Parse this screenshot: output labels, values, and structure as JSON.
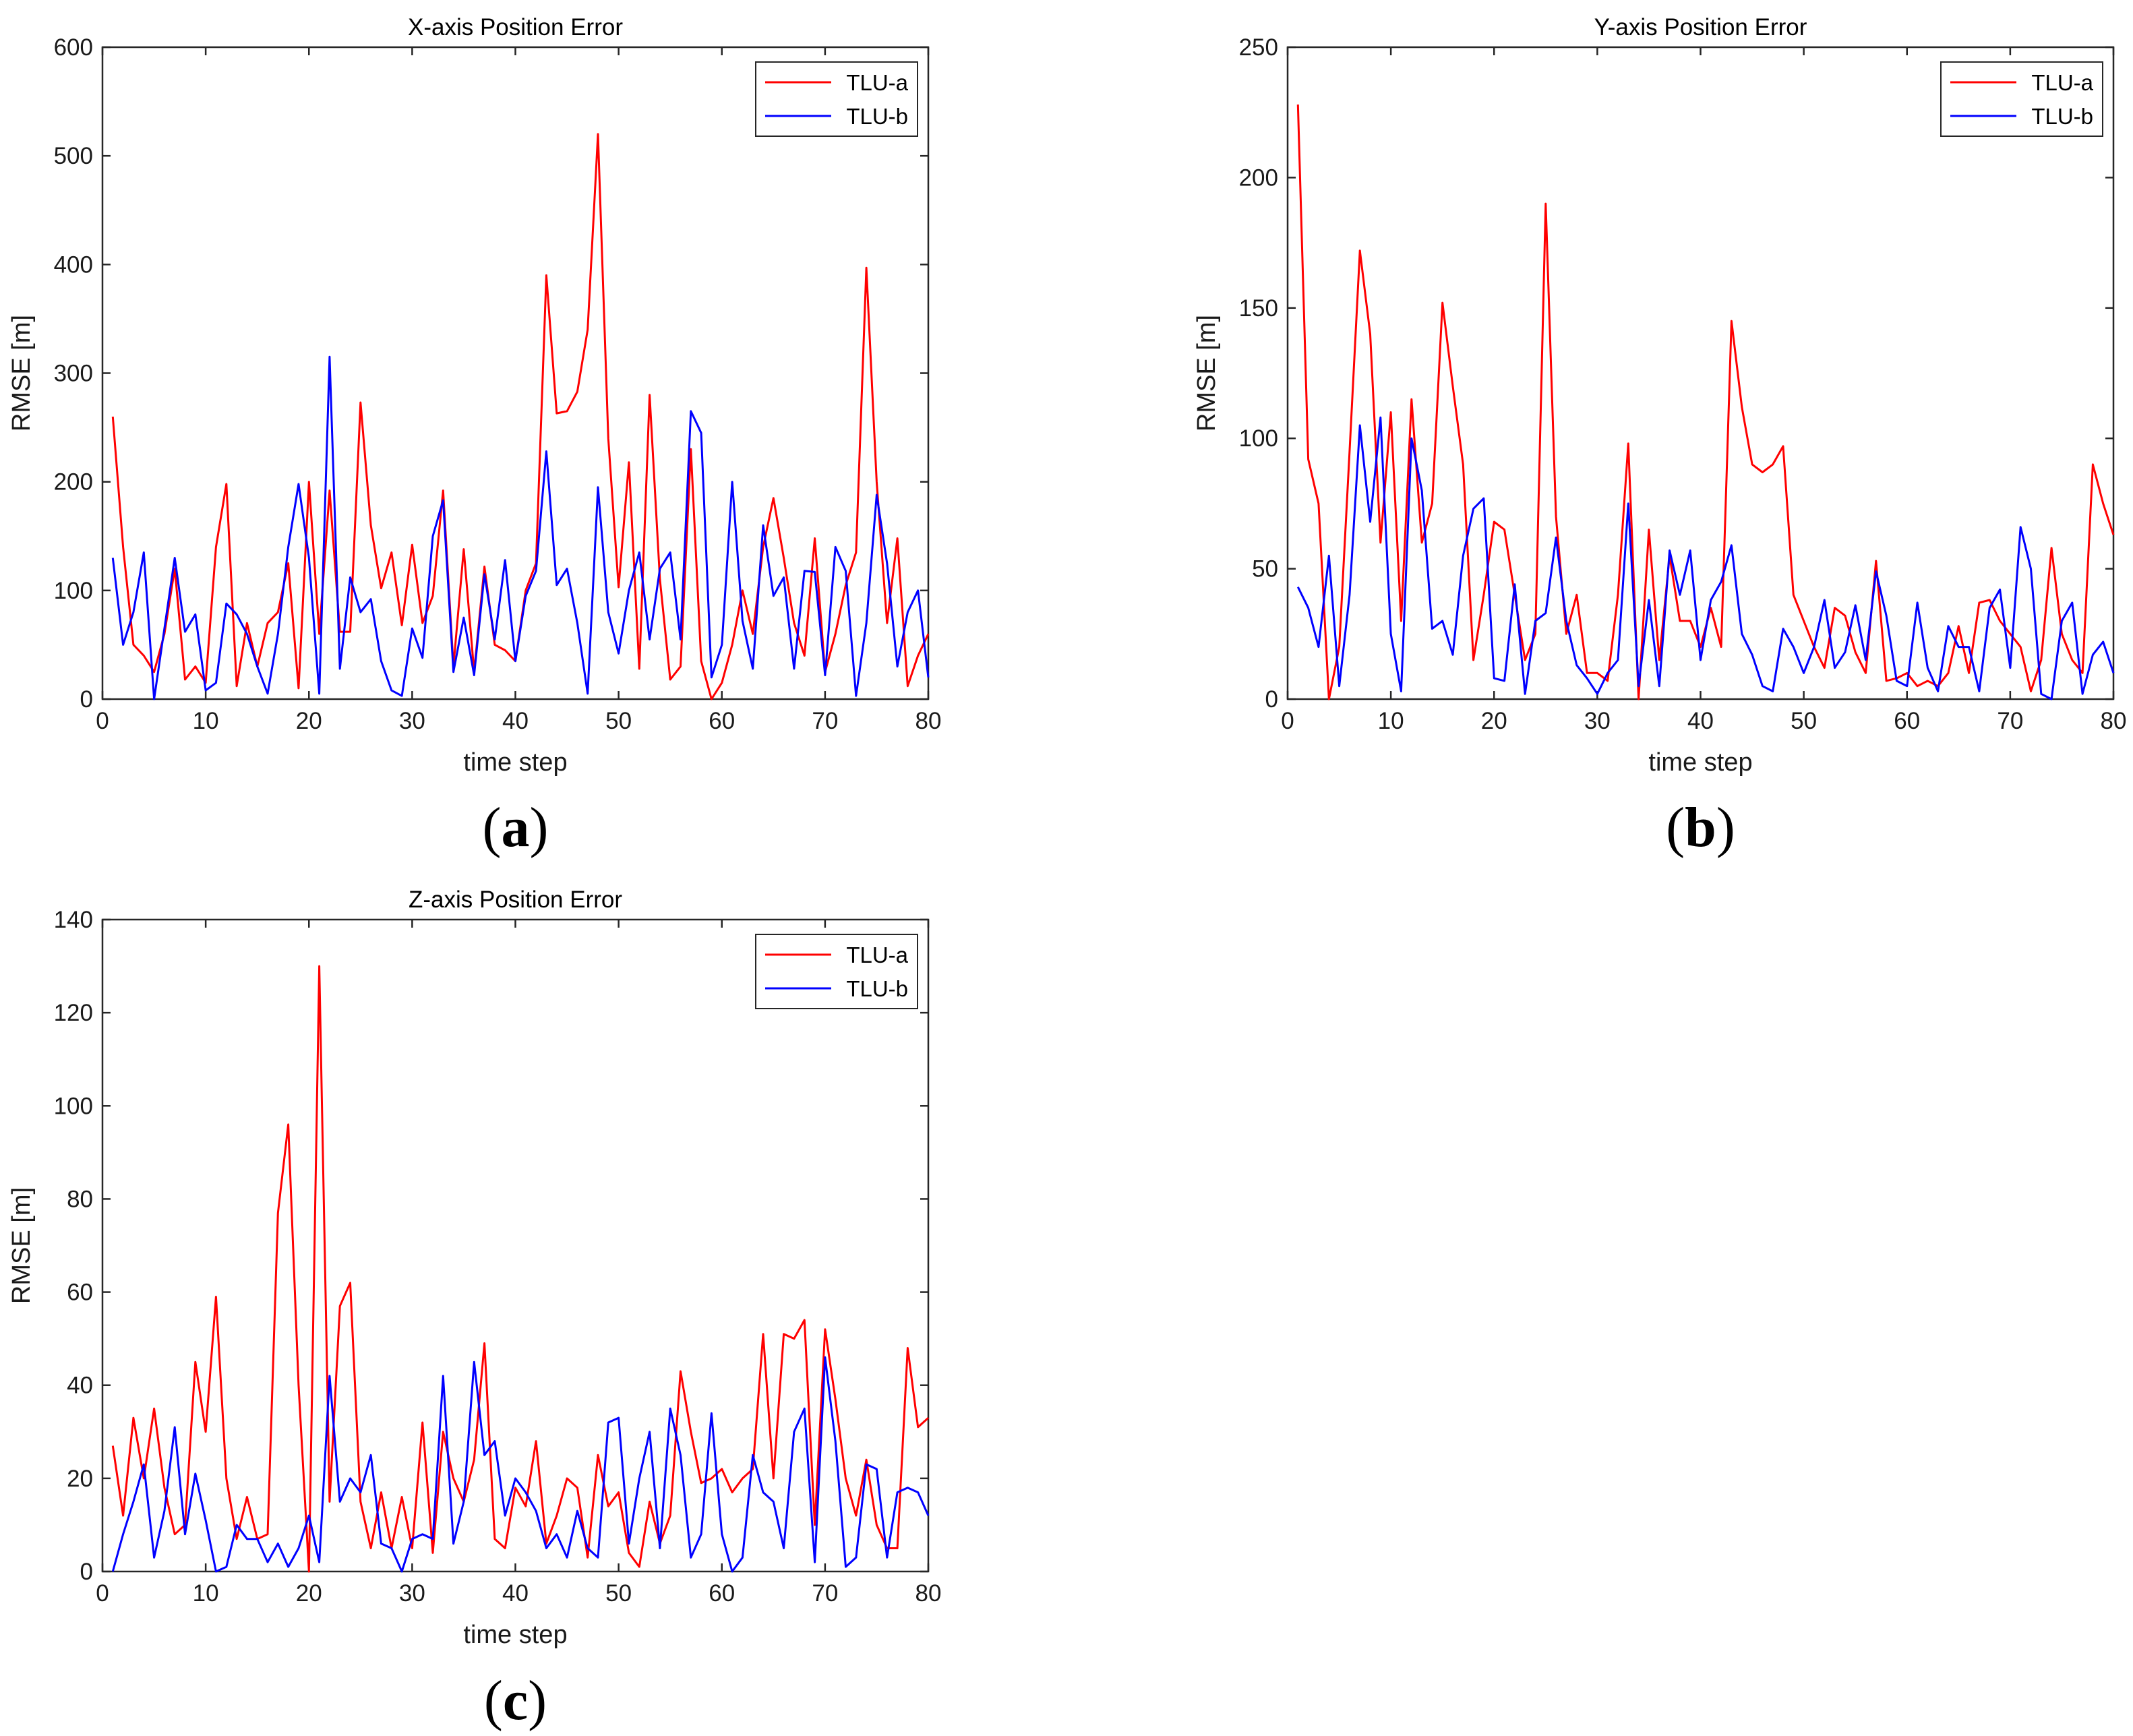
{
  "chart_data": [
    {
      "type": "line",
      "title": "X-axis Position Error",
      "xlabel": "time step",
      "ylabel": "RMSE [m]",
      "xlim": [
        0,
        80
      ],
      "ylim": [
        0,
        600
      ],
      "xticks": [
        0,
        10,
        20,
        30,
        40,
        50,
        60,
        70,
        80
      ],
      "yticks": [
        0,
        100,
        200,
        300,
        400,
        500,
        600
      ],
      "legend_position": "top-right",
      "caption_letter": "a",
      "series": [
        {
          "name": "TLU-a",
          "color": "#ff0000",
          "x": [
            1,
            2,
            3,
            4,
            5,
            6,
            7,
            8,
            9,
            10,
            11,
            12,
            13,
            14,
            15,
            16,
            17,
            18,
            19,
            20,
            21,
            22,
            23,
            24,
            25,
            26,
            27,
            28,
            29,
            30,
            31,
            32,
            33,
            34,
            35,
            36,
            37,
            38,
            39,
            40,
            41,
            42,
            43,
            44,
            45,
            46,
            47,
            48,
            49,
            50,
            51,
            52,
            53,
            54,
            55,
            56,
            57,
            58,
            59,
            60,
            61,
            62,
            63,
            64,
            65,
            66,
            67,
            68,
            69,
            70,
            71,
            72,
            73,
            74,
            75,
            76,
            77,
            78,
            79,
            80
          ],
          "values": [
            260,
            140,
            50,
            40,
            25,
            60,
            120,
            18,
            30,
            15,
            140,
            198,
            12,
            70,
            30,
            70,
            80,
            125,
            10,
            200,
            60,
            192,
            62,
            62,
            273,
            160,
            102,
            135,
            68,
            142,
            70,
            95,
            192,
            30,
            138,
            25,
            122,
            50,
            45,
            35,
            100,
            125,
            390,
            263,
            265,
            283,
            340,
            520,
            240,
            103,
            218,
            28,
            280,
            110,
            18,
            30,
            230,
            35,
            0,
            15,
            50,
            100,
            60,
            140,
            185,
            130,
            70,
            40,
            148,
            25,
            60,
            105,
            135,
            397,
            200,
            70,
            148,
            12,
            40,
            60
          ]
        },
        {
          "name": "TLU-b",
          "color": "#0000ff",
          "x": [
            1,
            2,
            3,
            4,
            5,
            6,
            7,
            8,
            9,
            10,
            11,
            12,
            13,
            14,
            15,
            16,
            17,
            18,
            19,
            20,
            21,
            22,
            23,
            24,
            25,
            26,
            27,
            28,
            29,
            30,
            31,
            32,
            33,
            34,
            35,
            36,
            37,
            38,
            39,
            40,
            41,
            42,
            43,
            44,
            45,
            46,
            47,
            48,
            49,
            50,
            51,
            52,
            53,
            54,
            55,
            56,
            57,
            58,
            59,
            60,
            61,
            62,
            63,
            64,
            65,
            66,
            67,
            68,
            69,
            70,
            71,
            72,
            73,
            74,
            75,
            76,
            77,
            78,
            79,
            80
          ],
          "values": [
            130,
            50,
            80,
            135,
            0,
            65,
            130,
            62,
            78,
            8,
            15,
            88,
            78,
            60,
            30,
            5,
            60,
            140,
            198,
            130,
            5,
            315,
            28,
            112,
            80,
            92,
            35,
            8,
            3,
            65,
            38,
            150,
            183,
            25,
            75,
            22,
            115,
            55,
            128,
            35,
            95,
            118,
            228,
            105,
            120,
            70,
            5,
            195,
            80,
            42,
            100,
            135,
            55,
            120,
            135,
            55,
            265,
            245,
            20,
            50,
            200,
            72,
            28,
            160,
            95,
            112,
            28,
            118,
            117,
            22,
            140,
            118,
            3,
            70,
            188,
            125,
            30,
            80,
            100,
            20
          ]
        }
      ]
    },
    {
      "type": "line",
      "title": "Y-axis Position Error",
      "xlabel": "time step",
      "ylabel": "RMSE [m]",
      "xlim": [
        0,
        80
      ],
      "ylim": [
        0,
        250
      ],
      "xticks": [
        0,
        10,
        20,
        30,
        40,
        50,
        60,
        70,
        80
      ],
      "yticks": [
        0,
        50,
        100,
        150,
        200,
        250
      ],
      "legend_position": "top-right",
      "caption_letter": "b",
      "series": [
        {
          "name": "TLU-a",
          "color": "#ff0000",
          "x": [
            1,
            2,
            3,
            4,
            5,
            6,
            7,
            8,
            9,
            10,
            11,
            12,
            13,
            14,
            15,
            16,
            17,
            18,
            19,
            20,
            21,
            22,
            23,
            24,
            25,
            26,
            27,
            28,
            29,
            30,
            31,
            32,
            33,
            34,
            35,
            36,
            37,
            38,
            39,
            40,
            41,
            42,
            43,
            44,
            45,
            46,
            47,
            48,
            49,
            50,
            51,
            52,
            53,
            54,
            55,
            56,
            57,
            58,
            59,
            60,
            61,
            62,
            63,
            64,
            65,
            66,
            67,
            68,
            69,
            70,
            71,
            72,
            73,
            74,
            75,
            76,
            77,
            78,
            79,
            80
          ],
          "values": [
            228,
            92,
            75,
            0,
            20,
            95,
            172,
            140,
            60,
            110,
            30,
            115,
            60,
            75,
            152,
            120,
            90,
            15,
            40,
            68,
            65,
            40,
            15,
            25,
            190,
            70,
            25,
            40,
            10,
            10,
            7,
            40,
            98,
            0,
            65,
            15,
            55,
            30,
            30,
            20,
            35,
            20,
            145,
            112,
            90,
            87,
            90,
            97,
            40,
            30,
            20,
            12,
            35,
            32,
            18,
            10,
            53,
            7,
            8,
            10,
            5,
            7,
            5,
            10,
            28,
            10,
            37,
            38,
            30,
            25,
            20,
            3,
            15,
            58,
            25,
            15,
            10,
            90,
            75,
            63
          ]
        },
        {
          "name": "TLU-b",
          "color": "#0000ff",
          "x": [
            1,
            2,
            3,
            4,
            5,
            6,
            7,
            8,
            9,
            10,
            11,
            12,
            13,
            14,
            15,
            16,
            17,
            18,
            19,
            20,
            21,
            22,
            23,
            24,
            25,
            26,
            27,
            28,
            29,
            30,
            31,
            32,
            33,
            34,
            35,
            36,
            37,
            38,
            39,
            40,
            41,
            42,
            43,
            44,
            45,
            46,
            47,
            48,
            49,
            50,
            51,
            52,
            53,
            54,
            55,
            56,
            57,
            58,
            59,
            60,
            61,
            62,
            63,
            64,
            65,
            66,
            67,
            68,
            69,
            70,
            71,
            72,
            73,
            74,
            75,
            76,
            77,
            78,
            79,
            80
          ],
          "values": [
            43,
            35,
            20,
            55,
            5,
            40,
            105,
            68,
            108,
            25,
            3,
            100,
            80,
            27,
            30,
            17,
            55,
            73,
            77,
            8,
            7,
            44,
            2,
            30,
            33,
            62,
            30,
            13,
            8,
            2,
            10,
            15,
            75,
            5,
            38,
            5,
            57,
            40,
            57,
            15,
            38,
            45,
            59,
            25,
            17,
            5,
            3,
            27,
            20,
            10,
            20,
            38,
            12,
            18,
            36,
            15,
            49,
            32,
            7,
            5,
            37,
            12,
            3,
            28,
            20,
            20,
            3,
            35,
            42,
            12,
            66,
            50,
            2,
            0,
            30,
            37,
            2,
            17,
            22,
            10
          ]
        }
      ]
    },
    {
      "type": "line",
      "title": "Z-axis Position Error",
      "xlabel": "time step",
      "ylabel": "RMSE [m]",
      "xlim": [
        0,
        80
      ],
      "ylim": [
        0,
        140
      ],
      "xticks": [
        0,
        10,
        20,
        30,
        40,
        50,
        60,
        70,
        80
      ],
      "yticks": [
        0,
        20,
        40,
        60,
        80,
        100,
        120,
        140
      ],
      "legend_position": "top-right",
      "caption_letter": "c",
      "series": [
        {
          "name": "TLU-a",
          "color": "#ff0000",
          "x": [
            1,
            2,
            3,
            4,
            5,
            6,
            7,
            8,
            9,
            10,
            11,
            12,
            13,
            14,
            15,
            16,
            17,
            18,
            19,
            20,
            21,
            22,
            23,
            24,
            25,
            26,
            27,
            28,
            29,
            30,
            31,
            32,
            33,
            34,
            35,
            36,
            37,
            38,
            39,
            40,
            41,
            42,
            43,
            44,
            45,
            46,
            47,
            48,
            49,
            50,
            51,
            52,
            53,
            54,
            55,
            56,
            57,
            58,
            59,
            60,
            61,
            62,
            63,
            64,
            65,
            66,
            67,
            68,
            69,
            70,
            71,
            72,
            73,
            74,
            75,
            76,
            77,
            78,
            79,
            80
          ],
          "values": [
            27,
            12,
            33,
            20,
            35,
            18,
            8,
            10,
            45,
            30,
            59,
            20,
            7,
            16,
            7,
            8,
            77,
            96,
            40,
            0,
            130,
            15,
            57,
            62,
            15,
            5,
            17,
            5,
            16,
            5,
            32,
            4,
            30,
            20,
            15,
            24,
            49,
            7,
            5,
            18,
            14,
            28,
            6,
            12,
            20,
            18,
            3,
            25,
            14,
            17,
            4,
            1,
            15,
            6,
            12,
            43,
            30,
            19,
            20,
            22,
            17,
            20,
            22,
            51,
            20,
            51,
            50,
            54,
            10,
            52,
            37,
            20,
            12,
            24,
            10,
            5,
            5,
            48,
            31,
            33
          ]
        },
        {
          "name": "TLU-b",
          "color": "#0000ff",
          "x": [
            1,
            2,
            3,
            4,
            5,
            6,
            7,
            8,
            9,
            10,
            11,
            12,
            13,
            14,
            15,
            16,
            17,
            18,
            19,
            20,
            21,
            22,
            23,
            24,
            25,
            26,
            27,
            28,
            29,
            30,
            31,
            32,
            33,
            34,
            35,
            36,
            37,
            38,
            39,
            40,
            41,
            42,
            43,
            44,
            45,
            46,
            47,
            48,
            49,
            50,
            51,
            52,
            53,
            54,
            55,
            56,
            57,
            58,
            59,
            60,
            61,
            62,
            63,
            64,
            65,
            66,
            67,
            68,
            69,
            70,
            71,
            72,
            73,
            74,
            75,
            76,
            77,
            78,
            79,
            80
          ],
          "values": [
            0,
            8,
            15,
            23,
            3,
            13,
            31,
            8,
            21,
            11,
            0,
            1,
            10,
            7,
            7,
            2,
            6,
            1,
            5,
            12,
            2,
            42,
            15,
            20,
            17,
            25,
            6,
            5,
            0,
            7,
            8,
            7,
            42,
            6,
            15,
            45,
            25,
            28,
            12,
            20,
            17,
            13,
            5,
            8,
            3,
            13,
            5,
            3,
            32,
            33,
            6,
            20,
            30,
            5,
            35,
            25,
            3,
            8,
            34,
            8,
            0,
            3,
            25,
            17,
            15,
            5,
            30,
            35,
            2,
            46,
            28,
            1,
            3,
            23,
            22,
            3,
            17,
            18,
            17,
            12
          ]
        }
      ]
    }
  ]
}
